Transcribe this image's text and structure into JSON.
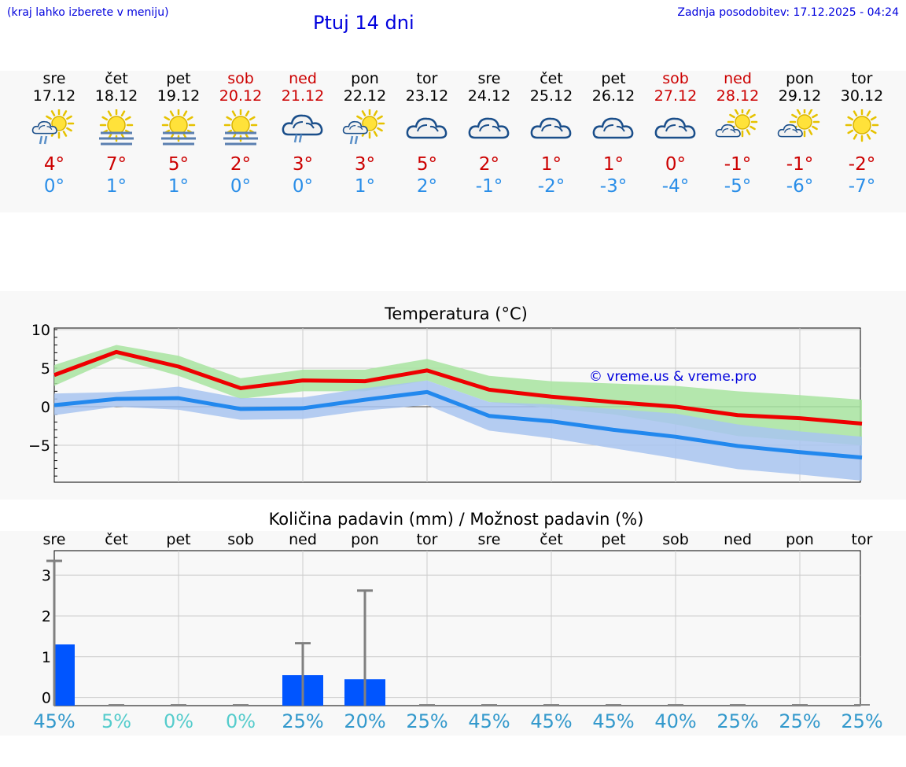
{
  "header": {
    "hint": "(kraj lahko izberete v meniju)",
    "title": "Ptuj 14 dni",
    "updated": "Zadnja posodobitev: 17.12.2025 - 04:24"
  },
  "days": [
    {
      "name": "sre",
      "date": "17.12",
      "weekend": false,
      "icon": "partly-sunny-rain-icon",
      "tmax": "4°",
      "tmin": "0°"
    },
    {
      "name": "čet",
      "date": "18.12",
      "weekend": false,
      "icon": "sun-fog-icon",
      "tmax": "7°",
      "tmin": "1°"
    },
    {
      "name": "pet",
      "date": "19.12",
      "weekend": false,
      "icon": "sun-fog-icon",
      "tmax": "5°",
      "tmin": "1°"
    },
    {
      "name": "sob",
      "date": "20.12",
      "weekend": true,
      "icon": "sun-fog-icon",
      "tmax": "2°",
      "tmin": "0°"
    },
    {
      "name": "ned",
      "date": "21.12",
      "weekend": true,
      "icon": "cloud-rain-icon",
      "tmax": "3°",
      "tmin": "0°"
    },
    {
      "name": "pon",
      "date": "22.12",
      "weekend": false,
      "icon": "partly-sunny-rain-icon",
      "tmax": "3°",
      "tmin": "1°"
    },
    {
      "name": "tor",
      "date": "23.12",
      "weekend": false,
      "icon": "cloudy-icon",
      "tmax": "5°",
      "tmin": "2°"
    },
    {
      "name": "sre",
      "date": "24.12",
      "weekend": false,
      "icon": "cloudy-icon",
      "tmax": "2°",
      "tmin": "-1°"
    },
    {
      "name": "čet",
      "date": "25.12",
      "weekend": false,
      "icon": "cloudy-icon",
      "tmax": "1°",
      "tmin": "-2°"
    },
    {
      "name": "pet",
      "date": "26.12",
      "weekend": false,
      "icon": "cloudy-icon",
      "tmax": "1°",
      "tmin": "-3°"
    },
    {
      "name": "sob",
      "date": "27.12",
      "weekend": true,
      "icon": "cloudy-icon",
      "tmax": "0°",
      "tmin": "-4°"
    },
    {
      "name": "ned",
      "date": "28.12",
      "weekend": true,
      "icon": "partly-cloudy-icon",
      "tmax": "-1°",
      "tmin": "-5°"
    },
    {
      "name": "pon",
      "date": "29.12",
      "weekend": false,
      "icon": "partly-cloudy-icon",
      "tmax": "-1°",
      "tmin": "-6°"
    },
    {
      "name": "tor",
      "date": "30.12",
      "weekend": false,
      "icon": "sunny-icon",
      "tmax": "-2°",
      "tmin": "-7°"
    }
  ],
  "colors": {
    "max": "#ee0000",
    "min": "#2288ee",
    "maxBand": "#a8e4a0",
    "minBand": "#a8c4f0",
    "bar": "#0055ff",
    "pctHigh": "#3399cc",
    "pctLow": "#55cccc"
  },
  "chart_data": [
    {
      "type": "line",
      "title": "Temperatura (°C)",
      "watermark": "© vreme.us & vreme.pro",
      "x": [
        0,
        1,
        2,
        3,
        4,
        5,
        6,
        7,
        8,
        9,
        10,
        11,
        12,
        13
      ],
      "ylim": [
        -9.8,
        10.2
      ],
      "yticks": [
        10,
        5,
        0,
        -5
      ],
      "ytick_labels": [
        "10",
        "5",
        "0",
        "−5"
      ],
      "series": [
        {
          "name": "max",
          "values": [
            4.1,
            7.1,
            5.2,
            2.4,
            3.4,
            3.3,
            4.7,
            2.2,
            1.3,
            0.6,
            0.0,
            -1.1,
            -1.5,
            -2.2
          ],
          "band_low": [
            2.7,
            6.3,
            4.0,
            1.0,
            2.0,
            2.0,
            3.4,
            0.6,
            -0.2,
            -1.0,
            -2.3,
            -3.8,
            -4.4,
            -5.0
          ],
          "band_high": [
            5.4,
            8.0,
            6.6,
            3.7,
            4.8,
            4.8,
            6.2,
            4.0,
            3.3,
            3.0,
            2.7,
            2.0,
            1.5,
            0.9
          ]
        },
        {
          "name": "min",
          "values": [
            0.2,
            1.0,
            1.1,
            -0.3,
            -0.2,
            0.9,
            1.9,
            -1.2,
            -1.9,
            -3.0,
            -3.9,
            -5.1,
            -5.9,
            -6.6
          ],
          "band_low": [
            -1.1,
            0.0,
            -0.4,
            -1.7,
            -1.6,
            -0.5,
            0.2,
            -3.1,
            -4.1,
            -5.4,
            -6.7,
            -8.1,
            -8.8,
            -9.6
          ],
          "band_high": [
            1.7,
            1.9,
            2.6,
            1.1,
            1.2,
            2.4,
            3.4,
            0.6,
            0.3,
            -0.3,
            -0.9,
            -2.3,
            -3.2,
            -3.9
          ]
        }
      ]
    },
    {
      "type": "bar",
      "title": "Količina padavin (mm) / Možnost padavin (%)",
      "categories": [
        "sre",
        "čet",
        "pet",
        "sob",
        "ned",
        "pon",
        "tor",
        "sre",
        "čet",
        "pet",
        "sob",
        "ned",
        "pon",
        "tor"
      ],
      "ylim": [
        -0.2,
        3.6
      ],
      "yticks": [
        0,
        1,
        2,
        3
      ],
      "ytick_labels": [
        "0",
        "1",
        "2",
        "3"
      ],
      "values": [
        1.3,
        0,
        0,
        0,
        0.55,
        0.45,
        0,
        0,
        0,
        0,
        0,
        0,
        0,
        0
      ],
      "error_high": [
        3.35,
        0,
        0,
        0,
        1.33,
        2.62,
        0,
        0,
        0,
        0,
        0,
        0,
        0,
        0
      ],
      "probability": [
        "45%",
        "5%",
        "0%",
        "0%",
        "25%",
        "20%",
        "25%",
        "45%",
        "45%",
        "45%",
        "40%",
        "25%",
        "25%",
        "25%"
      ],
      "probability_level": [
        45,
        5,
        0,
        0,
        25,
        20,
        25,
        45,
        45,
        45,
        40,
        25,
        25,
        25
      ]
    }
  ]
}
